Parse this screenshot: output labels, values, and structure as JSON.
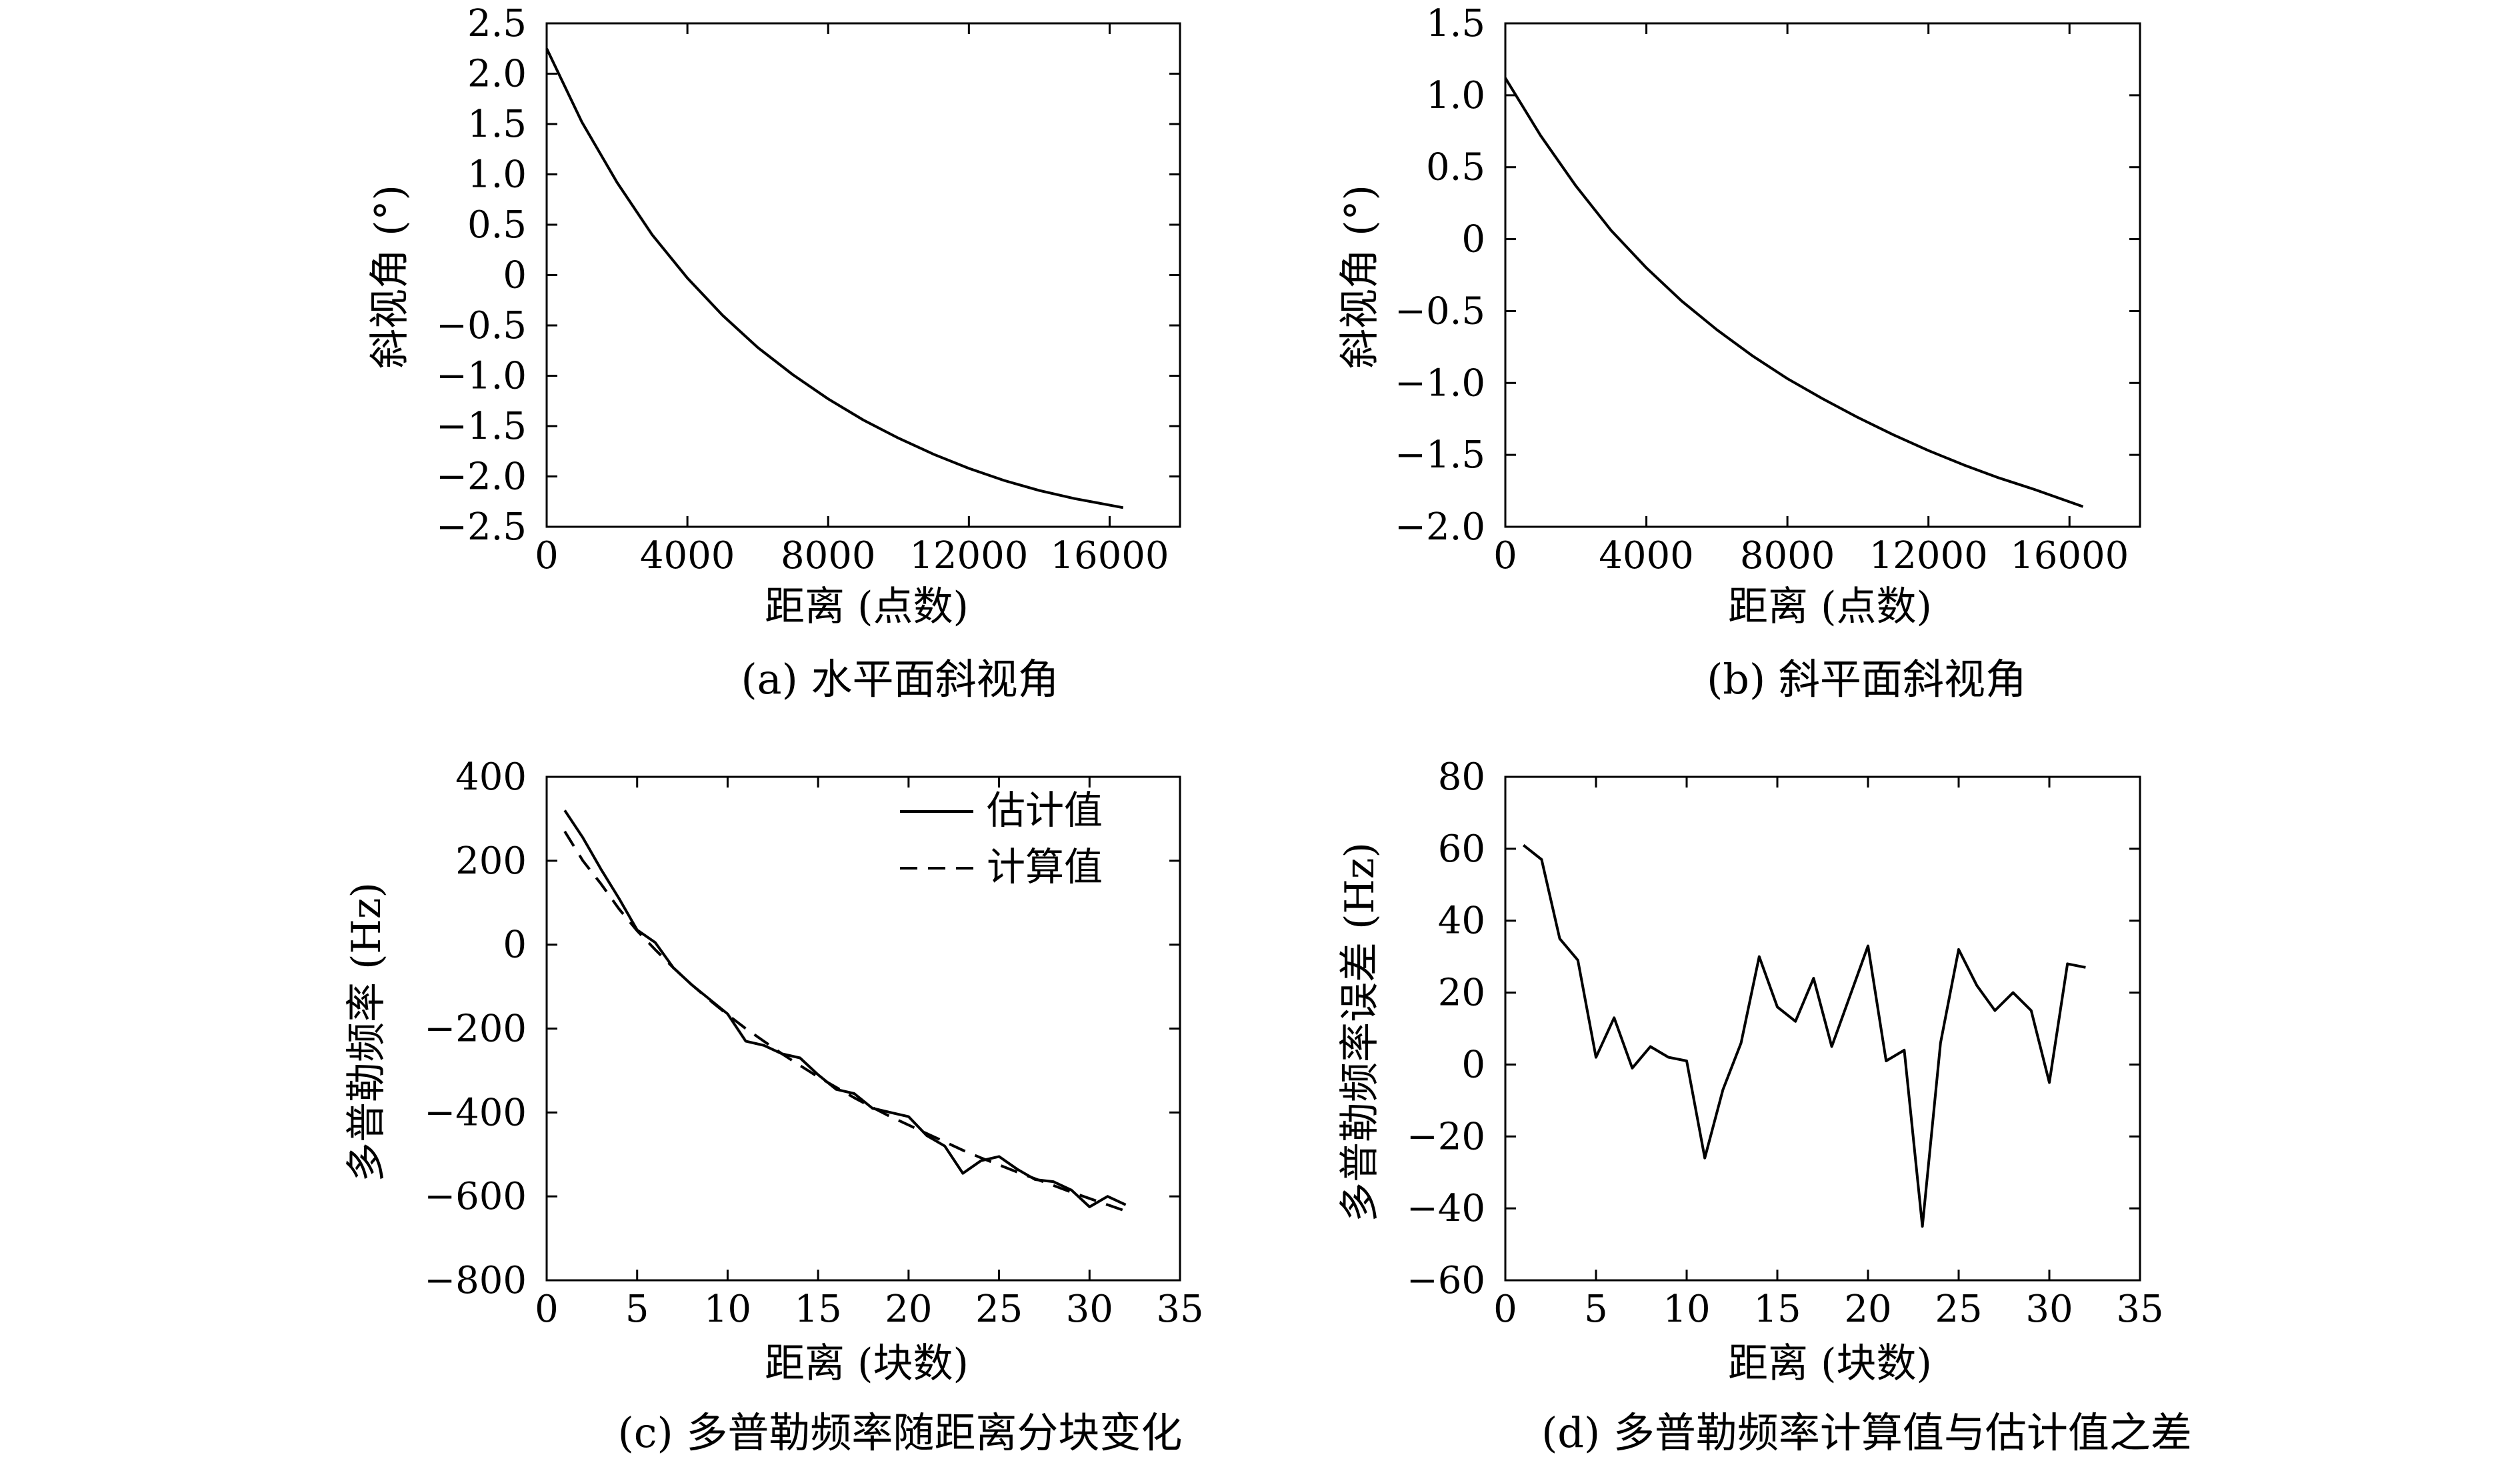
{
  "chart_data": [
    {
      "type": "line",
      "caption": "(a) 水平面斜视角",
      "xlabel": "距离 (点数)",
      "ylabel": "斜视角 (°)",
      "xlim": [
        0,
        18000
      ],
      "ylim": [
        -2.5,
        2.5
      ],
      "xticks": [
        0,
        4000,
        8000,
        12000,
        16000
      ],
      "xtick_labels": [
        "0",
        "4000",
        "8000",
        "12000",
        "16000"
      ],
      "yticks": [
        2.5,
        2.0,
        1.5,
        1.0,
        0.5,
        0,
        -0.5,
        -1.0,
        -1.5,
        -2.0,
        -2.5
      ],
      "ytick_labels": [
        "2.5",
        "2.0",
        "1.5",
        "1.0",
        "0.5",
        "0",
        "−0.5",
        "−1.0",
        "−1.5",
        "−2.0",
        "−2.5"
      ],
      "series": [
        {
          "name": "斜视角",
          "style": "solid",
          "x": [
            0,
            1000,
            2000,
            3000,
            4000,
            5000,
            6000,
            7000,
            8000,
            9000,
            10000,
            11000,
            12000,
            13000,
            14000,
            15000,
            16384
          ],
          "y": [
            2.25,
            1.52,
            0.92,
            0.4,
            -0.03,
            -0.4,
            -0.72,
            -0.99,
            -1.23,
            -1.44,
            -1.62,
            -1.78,
            -1.92,
            -2.04,
            -2.14,
            -2.22,
            -2.31
          ]
        }
      ]
    },
    {
      "type": "line",
      "caption": "(b) 斜平面斜视角",
      "xlabel": "距离 (点数)",
      "ylabel": "斜视角 (°)",
      "xlim": [
        0,
        18000
      ],
      "ylim": [
        -2.0,
        1.5
      ],
      "xticks": [
        0,
        4000,
        8000,
        12000,
        16000
      ],
      "xtick_labels": [
        "0",
        "4000",
        "8000",
        "12000",
        "16000"
      ],
      "yticks": [
        1.5,
        1.0,
        0.5,
        0,
        -0.5,
        -1.0,
        -1.5,
        -2.0
      ],
      "ytick_labels": [
        "1.5",
        "1.0",
        "0.5",
        "0",
        "−0.5",
        "−1.0",
        "−1.5",
        "−2.0"
      ],
      "series": [
        {
          "name": "斜视角",
          "style": "solid",
          "x": [
            0,
            1000,
            2000,
            3000,
            4000,
            5000,
            6000,
            7000,
            8000,
            9000,
            10000,
            11000,
            12000,
            13000,
            14000,
            15000,
            16384
          ],
          "y": [
            1.12,
            0.72,
            0.37,
            0.06,
            -0.2,
            -0.43,
            -0.63,
            -0.81,
            -0.97,
            -1.11,
            -1.24,
            -1.36,
            -1.47,
            -1.57,
            -1.66,
            -1.74,
            -1.86
          ]
        }
      ]
    },
    {
      "type": "line",
      "caption": "(c) 多普勒频率随距离分块变化",
      "xlabel": "距离 (块数)",
      "ylabel": "多普勒频率 (Hz)",
      "xlim": [
        0,
        35
      ],
      "ylim": [
        -800,
        400
      ],
      "xticks": [
        0,
        5,
        10,
        15,
        20,
        25,
        30,
        35
      ],
      "xtick_labels": [
        "0",
        "5",
        "10",
        "15",
        "20",
        "25",
        "30",
        "35"
      ],
      "yticks": [
        400,
        200,
        0,
        -200,
        -400,
        -600,
        -800
      ],
      "ytick_labels": [
        "400",
        "200",
        "0",
        "−200",
        "−400",
        "−600",
        "−800"
      ],
      "legend": {
        "position": "top-right",
        "entries": [
          "估计值",
          "计算值"
        ]
      },
      "series": [
        {
          "name": "估计值",
          "style": "solid",
          "x": [
            1,
            2,
            3,
            4,
            5,
            6,
            7,
            8,
            9,
            10,
            11,
            12,
            13,
            14,
            15,
            16,
            17,
            18,
            19,
            20,
            21,
            22,
            23,
            24,
            25,
            26,
            27,
            28,
            29,
            30,
            31,
            32
          ],
          "y": [
            320,
            255,
            180,
            110,
            35,
            5,
            -55,
            -95,
            -130,
            -165,
            -230,
            -240,
            -260,
            -270,
            -310,
            -345,
            -355,
            -390,
            -400,
            -410,
            -455,
            -480,
            -545,
            -515,
            -505,
            -535,
            -560,
            -565,
            -585,
            -625,
            -600,
            -620
          ]
        },
        {
          "name": "计算值",
          "style": "dashed",
          "x": [
            1,
            2,
            3,
            4,
            5,
            6,
            7,
            8,
            9,
            10,
            11,
            12,
            13,
            14,
            15,
            16,
            17,
            18,
            19,
            20,
            21,
            22,
            23,
            24,
            25,
            26,
            27,
            28,
            29,
            30,
            31,
            32
          ],
          "y": [
            270,
            200,
            145,
            85,
            33,
            -12,
            -55,
            -95,
            -132,
            -167,
            -200,
            -230,
            -260,
            -288,
            -315,
            -340,
            -365,
            -388,
            -410,
            -430,
            -450,
            -470,
            -490,
            -508,
            -525,
            -542,
            -558,
            -574,
            -590,
            -605,
            -620,
            -635
          ]
        }
      ]
    },
    {
      "type": "line",
      "caption": "(d) 多普勒频率计算值与估计值之差",
      "xlabel": "距离 (块数)",
      "ylabel": "多普勒频率误差 (Hz)",
      "xlim": [
        0,
        35
      ],
      "ylim": [
        -60,
        80
      ],
      "xticks": [
        0,
        5,
        10,
        15,
        20,
        25,
        30,
        35
      ],
      "xtick_labels": [
        "0",
        "5",
        "10",
        "15",
        "20",
        "25",
        "30",
        "35"
      ],
      "yticks": [
        80,
        60,
        40,
        20,
        0,
        -20,
        -40,
        -60
      ],
      "ytick_labels": [
        "80",
        "60",
        "40",
        "20",
        "0",
        "−20",
        "−40",
        "−60"
      ],
      "series": [
        {
          "name": "误差",
          "style": "solid",
          "x": [
            1,
            2,
            3,
            4,
            5,
            6,
            7,
            8,
            9,
            10,
            11,
            12,
            13,
            14,
            15,
            16,
            17,
            18,
            19,
            20,
            21,
            22,
            23,
            24,
            25,
            26,
            27,
            28,
            29,
            30,
            31,
            32
          ],
          "y": [
            61,
            57,
            35,
            29,
            2,
            13,
            -1,
            5,
            2,
            1,
            -26,
            -7,
            6,
            30,
            16,
            12,
            24,
            5,
            19,
            33,
            1,
            4,
            -45,
            6,
            32,
            22,
            15,
            20,
            15,
            -5,
            28,
            27
          ]
        }
      ]
    }
  ]
}
